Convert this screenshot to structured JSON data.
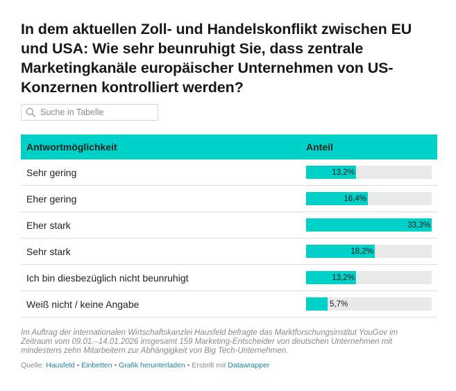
{
  "title": "In dem aktuellen Zoll- und Handelskonflikt zwischen EU und USA:  Wie sehr beunruhigt Sie, dass zentrale Marketingkanäle europäischer Unternehmen von US-Konzernen kontrolliert werden?",
  "search": {
    "placeholder": "Suche in Tabelle",
    "icon": "search-icon"
  },
  "colors": {
    "accent": "#00d1c8",
    "bar_bg": "#e9e9e9",
    "link": "#1d81a2",
    "muted": "#8a8a8a"
  },
  "chart_data": {
    "type": "table",
    "columns": [
      "Antwortmöglichkeit",
      "Anteil"
    ],
    "max": 33.3,
    "rows": [
      {
        "label": "Sehr gering",
        "value": 13.2,
        "value_text": "13,2%"
      },
      {
        "label": "Eher gering",
        "value": 16.4,
        "value_text": "16,4%"
      },
      {
        "label": "Eher stark",
        "value": 33.3,
        "value_text": "33,3%"
      },
      {
        "label": "Sehr stark",
        "value": 18.2,
        "value_text": "18,2%"
      },
      {
        "label": "Ich bin diesbezüglich nicht beunruhigt",
        "value": 13.2,
        "value_text": "13,2%"
      },
      {
        "label": "Weiß nicht / keine Angabe",
        "value": 5.7,
        "value_text": "5,7%"
      }
    ]
  },
  "note": "Im Auftrag der internationalen Wirtschaftskanzlei Hausfeld befragte das Marktforschungsinstitut YouGov im Zeitraum vom 09.01.–14.01.2026 insgesamt 159 Marketing-Entscheider von deutschen Unternehmen mit mindestens zehn Mitarbeitern zur Abhängigkeit von Big Tech-Unternehmen.",
  "footer": {
    "source_label": "Quelle:",
    "source_link": "Hausfeld",
    "embed_link": "Einbetten",
    "download_link": "Grafik herunterladen",
    "created_label": "Erstellt mit",
    "created_link": "Datawrapper",
    "separator": "•"
  }
}
